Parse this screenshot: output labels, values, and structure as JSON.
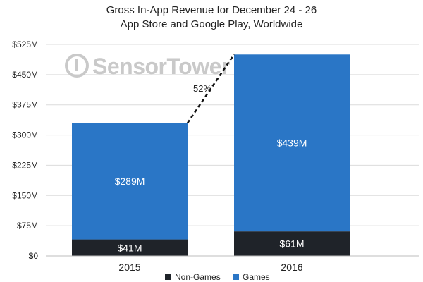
{
  "chart_data": {
    "type": "bar",
    "stacked": true,
    "title": "Gross In-App Revenue for December 24 - 26",
    "subtitle": "App Store and Google Play, Worldwide",
    "categories": [
      "2015",
      "2016"
    ],
    "series": [
      {
        "name": "Non-Games",
        "values": [
          41,
          61
        ],
        "labels": [
          "$41M",
          "$61M"
        ],
        "color": "#1f2329"
      },
      {
        "name": "Games",
        "values": [
          289,
          439
        ],
        "labels": [
          "$289M",
          "$439M"
        ],
        "color": "#2a76c6"
      }
    ],
    "ylim": [
      0,
      525
    ],
    "yticks": [
      0,
      75,
      150,
      225,
      300,
      375,
      450,
      525
    ],
    "ytick_labels": [
      "$0",
      "$75M",
      "$150M",
      "$225M",
      "$300M",
      "$375M",
      "$450M",
      "$525M"
    ],
    "annotation": "52%",
    "grid": true,
    "legend_position": "bottom-center",
    "watermark": "SensorTower"
  }
}
